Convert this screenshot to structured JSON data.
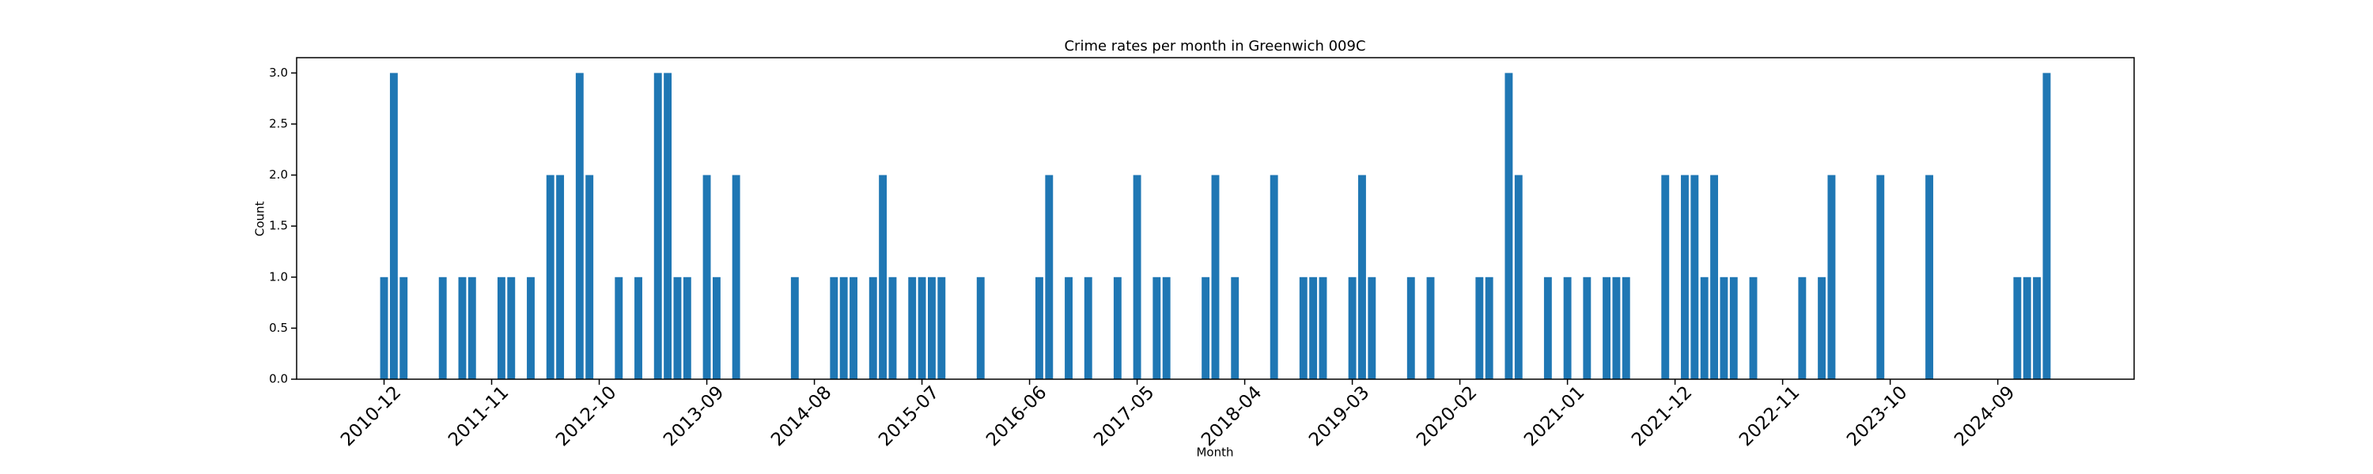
{
  "chart_data": {
    "type": "bar",
    "title": "Crime rates per month in Greenwich 009C",
    "xlabel": "Month",
    "ylabel": "Count",
    "color": "#1f77b4",
    "categories": [
      "2010-12",
      null,
      null,
      null,
      null,
      null,
      null,
      null,
      null,
      null,
      null,
      "2011-11",
      null,
      null,
      null,
      null,
      null,
      null,
      null,
      null,
      null,
      null,
      "2012-10",
      null,
      null,
      null,
      null,
      null,
      null,
      null,
      null,
      null,
      null,
      "2013-09",
      null,
      null,
      null,
      null,
      null,
      null,
      null,
      null,
      null,
      null,
      "2014-08",
      null,
      null,
      null,
      null,
      null,
      null,
      null,
      null,
      null,
      null,
      "2015-07",
      null,
      null,
      null,
      null,
      null,
      null,
      null,
      null,
      null,
      null,
      "2016-06",
      null,
      null,
      null,
      null,
      null,
      null,
      null,
      null,
      null,
      null,
      "2017-05",
      null,
      null,
      null,
      null,
      null,
      null,
      null,
      null,
      null,
      null,
      "2018-04",
      null,
      null,
      null,
      null,
      null,
      null,
      null,
      null,
      null,
      null,
      "2019-03",
      null,
      null,
      null,
      null,
      null,
      null,
      null,
      null,
      null,
      null,
      "2020-02",
      null,
      null,
      null,
      null,
      null,
      null,
      null,
      null,
      null,
      null,
      "2021-01",
      null,
      null,
      null,
      null,
      null,
      null,
      null,
      null,
      null,
      null,
      "2021-12",
      null,
      null,
      null,
      null,
      null,
      null,
      null,
      null,
      null,
      null,
      "2022-11",
      null,
      null,
      null,
      null,
      null,
      null,
      null,
      null,
      null,
      null,
      "2023-10",
      null,
      null,
      null,
      null,
      null,
      null,
      null,
      null,
      null,
      null,
      "2024-09",
      null,
      null,
      null,
      null,
      null
    ],
    "values": [
      1,
      3,
      1,
      0,
      0,
      0,
      1,
      0,
      1,
      1,
      0,
      0,
      1,
      1,
      0,
      1,
      0,
      2,
      2,
      0,
      3,
      2,
      0,
      0,
      1,
      0,
      1,
      0,
      3,
      3,
      1,
      1,
      0,
      2,
      1,
      0,
      2,
      0,
      0,
      0,
      0,
      0,
      1,
      0,
      0,
      0,
      1,
      1,
      1,
      0,
      1,
      2,
      1,
      0,
      1,
      1,
      1,
      1,
      0,
      0,
      0,
      1,
      0,
      0,
      0,
      0,
      0,
      1,
      2,
      0,
      1,
      0,
      1,
      0,
      0,
      1,
      0,
      2,
      0,
      1,
      1,
      0,
      0,
      0,
      1,
      2,
      0,
      1,
      0,
      0,
      0,
      2,
      0,
      0,
      1,
      1,
      1,
      0,
      0,
      1,
      2,
      1,
      0,
      0,
      0,
      1,
      0,
      1,
      0,
      0,
      0,
      0,
      1,
      1,
      0,
      3,
      2,
      0,
      0,
      1,
      0,
      1,
      0,
      1,
      0,
      1,
      1,
      1,
      0,
      0,
      0,
      2,
      0,
      2,
      2,
      1,
      2,
      1,
      1,
      0,
      1,
      0,
      0,
      0,
      0,
      1,
      0,
      1,
      2,
      0,
      0,
      0,
      0,
      2,
      0,
      0,
      0,
      0,
      2,
      0,
      0,
      0,
      0,
      0,
      0,
      0,
      0,
      1,
      1,
      1,
      3
    ],
    "ylim": [
      0,
      3.15
    ],
    "yticks": [
      {
        "value": 0,
        "label": "0.0"
      },
      {
        "value": 0.5,
        "label": "0.5"
      },
      {
        "value": 1,
        "label": "1.0"
      },
      {
        "value": 1.5,
        "label": "1.5"
      },
      {
        "value": 2,
        "label": "2.0"
      },
      {
        "value": 2.5,
        "label": "2.5"
      },
      {
        "value": 3,
        "label": "3.0"
      }
    ],
    "grid": false
  }
}
